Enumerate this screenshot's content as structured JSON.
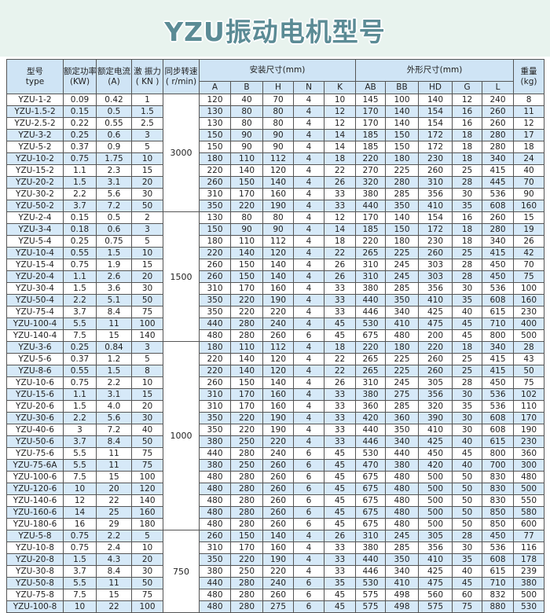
{
  "title": "YZU振动电机型号",
  "colors": {
    "title": "#5b8b95",
    "title_band": "#e8f3ee",
    "header_bg": "#cfe4f5",
    "stripe": "#d6e9f8"
  },
  "headers": {
    "type": [
      "型号",
      "type"
    ],
    "power": [
      "额定功率",
      "(KW)"
    ],
    "current": [
      "额定电流",
      "(A)"
    ],
    "force": [
      "激 振力",
      "( KN )"
    ],
    "speed": [
      "同步转速",
      "( r/min)"
    ],
    "install": "安装尺寸(mm)",
    "outline": "外形尺寸(mm)",
    "weight": [
      "重量",
      "(kg)"
    ],
    "install_cols": [
      "A",
      "B",
      "H",
      "N",
      "K"
    ],
    "outline_cols": [
      "AB",
      "BB",
      "HD",
      "G",
      "L"
    ]
  },
  "groups": [
    {
      "speed": "3000",
      "rows": [
        [
          "YZU-1-2",
          "0.09",
          "0.42",
          "1",
          "120",
          "40",
          "70",
          "4",
          "10",
          "145",
          "100",
          "140",
          "12",
          "240",
          "8"
        ],
        [
          "YZU-1.5-2",
          "0.15",
          "0.5",
          "1.5",
          "130",
          "80",
          "80",
          "4",
          "12",
          "170",
          "140",
          "154",
          "16",
          "260",
          "11"
        ],
        [
          "YZU-2.5-2",
          "0.22",
          "0.55",
          "2.5",
          "130",
          "80",
          "80",
          "4",
          "12",
          "170",
          "140",
          "154",
          "16",
          "260",
          "12"
        ],
        [
          "YZU-3-2",
          "0.25",
          "0.6",
          "3",
          "150",
          "90",
          "90",
          "4",
          "14",
          "185",
          "150",
          "172",
          "18",
          "280",
          "17"
        ],
        [
          "YZU-5-2",
          "0.37",
          "0.9",
          "5",
          "150",
          "90",
          "90",
          "4",
          "14",
          "185",
          "150",
          "172",
          "18",
          "280",
          "18"
        ],
        [
          "YZU-10-2",
          "0.75",
          "1.75",
          "10",
          "180",
          "110",
          "112",
          "4",
          "18",
          "220",
          "180",
          "230",
          "18",
          "340",
          "24"
        ],
        [
          "YZU-15-2",
          "1.1",
          "2.3",
          "15",
          "220",
          "140",
          "120",
          "4",
          "22",
          "270",
          "225",
          "260",
          "25",
          "415",
          "40"
        ],
        [
          "YZU-20-2",
          "1.5",
          "3.1",
          "20",
          "260",
          "150",
          "140",
          "4",
          "26",
          "320",
          "280",
          "310",
          "28",
          "445",
          "70"
        ],
        [
          "YZU-30-2",
          "2.2",
          "5.6",
          "30",
          "310",
          "170",
          "160",
          "4",
          "33",
          "380",
          "285",
          "356",
          "30",
          "536",
          "90"
        ],
        [
          "YZU-50-2",
          "3.7",
          "7.2",
          "50",
          "350",
          "220",
          "190",
          "4",
          "33",
          "440",
          "350",
          "410",
          "35",
          "608",
          "160"
        ]
      ]
    },
    {
      "speed": "1500",
      "rows": [
        [
          "YZU-2-4",
          "0.15",
          "0.5",
          "2",
          "130",
          "80",
          "80",
          "4",
          "12",
          "170",
          "140",
          "154",
          "16",
          "260",
          "15"
        ],
        [
          "YZU-3-4",
          "0.18",
          "0.6",
          "3",
          "150",
          "90",
          "90",
          "4",
          "14",
          "185",
          "150",
          "172",
          "18",
          "280",
          "19"
        ],
        [
          "YZU-5-4",
          "0.25",
          "0.75",
          "5",
          "180",
          "110",
          "112",
          "4",
          "18",
          "220",
          "180",
          "230",
          "18",
          "340",
          "26"
        ],
        [
          "YZU-10-4",
          "0.55",
          "1.5",
          "10",
          "220",
          "140",
          "120",
          "4",
          "22",
          "265",
          "225",
          "260",
          "25",
          "415",
          "42"
        ],
        [
          "YZU-15-4",
          "0.75",
          "1.9",
          "15",
          "260",
          "150",
          "140",
          "4",
          "26",
          "310",
          "245",
          "303",
          "28",
          "450",
          "70"
        ],
        [
          "YZU-20-4",
          "1.1",
          "2.6",
          "20",
          "260",
          "150",
          "140",
          "4",
          "26",
          "310",
          "245",
          "303",
          "28",
          "450",
          "75"
        ],
        [
          "YZU-30-4",
          "1.5",
          "3.6",
          "30",
          "310",
          "170",
          "160",
          "4",
          "33",
          "380",
          "285",
          "356",
          "30",
          "536",
          "100"
        ],
        [
          "YZU-50-4",
          "2.2",
          "5.1",
          "50",
          "350",
          "220",
          "190",
          "4",
          "33",
          "440",
          "350",
          "410",
          "35",
          "608",
          "160"
        ],
        [
          "YZU-75-4",
          "3.7",
          "8.4",
          "75",
          "350",
          "220",
          "220",
          "4",
          "33",
          "446",
          "340",
          "425",
          "40",
          "615",
          "230"
        ],
        [
          "YZU-100-4",
          "5.5",
          "11",
          "100",
          "440",
          "280",
          "240",
          "4",
          "45",
          "530",
          "410",
          "475",
          "45",
          "710",
          "400"
        ],
        [
          "YZU-140-4",
          "7.5",
          "15",
          "140",
          "480",
          "280",
          "260",
          "6",
          "45",
          "675",
          "480",
          "200",
          "45",
          "800",
          "500"
        ]
      ]
    },
    {
      "speed": "1000",
      "rows": [
        [
          "YZU-3-6",
          "0.25",
          "0.84",
          "3",
          "180",
          "110",
          "112",
          "4",
          "18",
          "220",
          "180",
          "220",
          "18",
          "340",
          "28"
        ],
        [
          "YZU-5-6",
          "0.37",
          "1.2",
          "5",
          "220",
          "140",
          "120",
          "4",
          "22",
          "265",
          "225",
          "260",
          "25",
          "415",
          "43"
        ],
        [
          "YZU-8-6",
          "0.55",
          "1.5",
          "8",
          "220",
          "140",
          "120",
          "4",
          "22",
          "265",
          "225",
          "260",
          "25",
          "415",
          "50"
        ],
        [
          "YZU-10-6",
          "0.75",
          "2.2",
          "10",
          "260",
          "150",
          "140",
          "4",
          "26",
          "310",
          "245",
          "305",
          "28",
          "450",
          "75"
        ],
        [
          "YZU-15-6",
          "1.1",
          "3.1",
          "15",
          "310",
          "170",
          "160",
          "4",
          "33",
          "380",
          "275",
          "356",
          "30",
          "536",
          "102"
        ],
        [
          "YZU-20-6",
          "1.5",
          "4.0",
          "20",
          "310",
          "170",
          "160",
          "4",
          "33",
          "360",
          "285",
          "320",
          "35",
          "536",
          "110"
        ],
        [
          "YZU-30-6",
          "2.2",
          "5.6",
          "30",
          "350",
          "220",
          "190",
          "4",
          "33",
          "420",
          "360",
          "390",
          "30",
          "608",
          "170"
        ],
        [
          "YZU-40-6",
          "3",
          "7.2",
          "40",
          "350",
          "220",
          "190",
          "4",
          "33",
          "440",
          "350",
          "410",
          "30",
          "608",
          "190"
        ],
        [
          "YZU-50-6",
          "3.7",
          "8.4",
          "50",
          "380",
          "250",
          "220",
          "4",
          "33",
          "446",
          "340",
          "425",
          "40",
          "615",
          "230"
        ],
        [
          "YZU-75-6",
          "5.5",
          "11",
          "75",
          "440",
          "280",
          "240",
          "6",
          "45",
          "530",
          "440",
          "450",
          "45",
          "800",
          "360"
        ],
        [
          "YZU-75-6A",
          "5.5",
          "11",
          "75",
          "380",
          "250",
          "260",
          "6",
          "45",
          "470",
          "380",
          "420",
          "40",
          "700",
          "300"
        ],
        [
          "YZU-100-6",
          "7.5",
          "15",
          "100",
          "480",
          "280",
          "260",
          "6",
          "45",
          "675",
          "480",
          "500",
          "50",
          "830",
          "480"
        ],
        [
          "YZU-120-6",
          "10",
          "20",
          "120",
          "480",
          "280",
          "260",
          "6",
          "45",
          "675",
          "480",
          "500",
          "50",
          "830",
          "500"
        ],
        [
          "YZU-140-6",
          "12",
          "22",
          "140",
          "480",
          "280",
          "260",
          "6",
          "45",
          "675",
          "480",
          "500",
          "50",
          "830",
          "550"
        ],
        [
          "YZU-160-6",
          "14",
          "25",
          "160",
          "480",
          "280",
          "260",
          "6",
          "45",
          "675",
          "480",
          "500",
          "50",
          "850",
          "580"
        ],
        [
          "YZU-180-6",
          "16",
          "29",
          "180",
          "480",
          "280",
          "260",
          "6",
          "45",
          "675",
          "480",
          "500",
          "50",
          "850",
          "600"
        ]
      ]
    },
    {
      "speed": "750",
      "rows": [
        [
          "YZU-5-8",
          "0.75",
          "2.2",
          "5",
          "260",
          "150",
          "140",
          "4",
          "26",
          "310",
          "245",
          "305",
          "28",
          "450",
          "77"
        ],
        [
          "YZU-10-8",
          "0.75",
          "2.4",
          "10",
          "310",
          "170",
          "160",
          "4",
          "33",
          "380",
          "285",
          "356",
          "30",
          "536",
          "116"
        ],
        [
          "YZU-20-8",
          "1.5",
          "4.3",
          "20",
          "350",
          "220",
          "190",
          "4",
          "33",
          "440",
          "350",
          "410",
          "35",
          "608",
          "178"
        ],
        [
          "YZU-30-8",
          "3.7",
          "8.4",
          "30",
          "380",
          "250",
          "220",
          "4",
          "33",
          "446",
          "340",
          "425",
          "40",
          "615",
          "239"
        ],
        [
          "YZU-50-8",
          "5.5",
          "11",
          "50",
          "440",
          "280",
          "240",
          "6",
          "35",
          "530",
          "410",
          "475",
          "45",
          "710",
          "380"
        ],
        [
          "YZU-75-8",
          "7.5",
          "15",
          "75",
          "480",
          "280",
          "260",
          "6",
          "45",
          "575",
          "498",
          "560",
          "60",
          "832",
          "500"
        ],
        [
          "YZU-100-8",
          "10",
          "22",
          "100",
          "480",
          "280",
          "275",
          "6",
          "45",
          "575",
          "498",
          "575",
          "75",
          "880",
          "530"
        ]
      ]
    }
  ]
}
